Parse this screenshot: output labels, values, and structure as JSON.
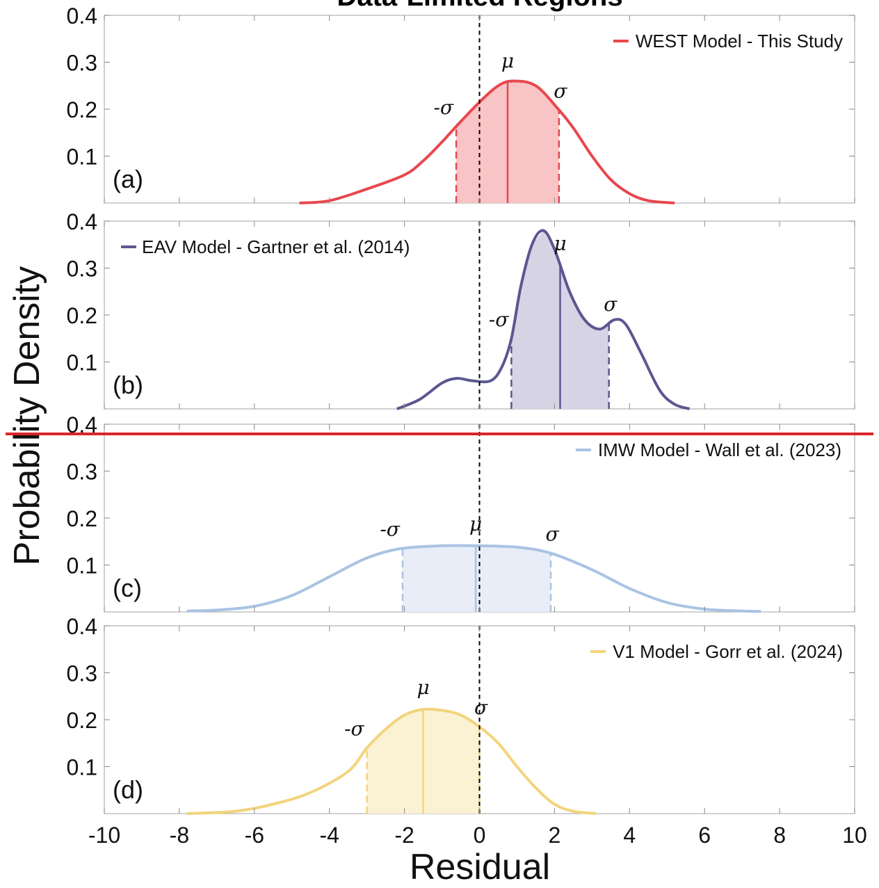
{
  "title": "Data-Limited Regions",
  "ylabel": "Probability Density",
  "xlabel": "Residual",
  "xlim": [
    -10,
    10
  ],
  "ylim": [
    0,
    0.4
  ],
  "xticks": [
    -10,
    -8,
    -6,
    -4,
    -2,
    0,
    2,
    4,
    6,
    8,
    10
  ],
  "yticks": [
    0.1,
    0.2,
    0.3,
    0.4
  ],
  "reference_line_x": 0,
  "overlay_line_color": "#d9252b",
  "chart_data": [
    {
      "type": "area",
      "panel_label": "(a)",
      "series": [
        {
          "name": "WEST Model - This Study",
          "color": "#e8474d",
          "fill": "#f9c4c6",
          "x": [
            -4.8,
            -4.0,
            -3.0,
            -2.0,
            -1.5,
            -1.0,
            -0.6,
            0.0,
            0.5,
            0.9,
            1.5,
            2.1,
            2.5,
            3.0,
            3.5,
            4.0,
            4.5,
            5.2
          ],
          "y": [
            0.0,
            0.005,
            0.03,
            0.06,
            0.09,
            0.13,
            0.165,
            0.215,
            0.25,
            0.26,
            0.25,
            0.2,
            0.16,
            0.1,
            0.05,
            0.02,
            0.005,
            0.0
          ]
        }
      ],
      "mu": 0.75,
      "sigma_minus": -0.62,
      "sigma_plus": 2.12,
      "legend_position": "top-right"
    },
    {
      "type": "area",
      "panel_label": "(b)",
      "series": [
        {
          "name": "EAV Model - Gartner et al. (2014)",
          "color": "#5b578f",
          "fill": "#d6d3e5",
          "x": [
            -2.2,
            -1.6,
            -1.0,
            -0.6,
            -0.2,
            0.3,
            0.6,
            0.85,
            1.1,
            1.4,
            1.7,
            2.0,
            2.4,
            2.8,
            3.2,
            3.6,
            3.9,
            4.3,
            4.8,
            5.2,
            5.6
          ],
          "y": [
            0.0,
            0.02,
            0.055,
            0.065,
            0.06,
            0.06,
            0.09,
            0.15,
            0.26,
            0.35,
            0.38,
            0.34,
            0.25,
            0.19,
            0.17,
            0.19,
            0.18,
            0.12,
            0.04,
            0.01,
            0.0
          ]
        }
      ],
      "mu": 2.15,
      "sigma_minus": 0.85,
      "sigma_plus": 3.45,
      "legend_position": "top-left"
    },
    {
      "type": "area",
      "panel_label": "(c)",
      "series": [
        {
          "name": "IMW Model - Wall et al. (2023)",
          "color": "#a9c3e3",
          "fill": "#e8edf8",
          "x": [
            -7.8,
            -7.0,
            -6.0,
            -5.0,
            -4.0,
            -3.0,
            -2.1,
            -1.0,
            -0.1,
            1.0,
            1.9,
            3.0,
            4.0,
            5.0,
            6.0,
            7.0,
            7.5
          ],
          "y": [
            0.002,
            0.004,
            0.012,
            0.035,
            0.075,
            0.115,
            0.135,
            0.141,
            0.141,
            0.138,
            0.125,
            0.09,
            0.05,
            0.02,
            0.006,
            0.002,
            0.001
          ]
        }
      ],
      "mu": -0.1,
      "sigma_minus": -2.05,
      "sigma_plus": 1.9,
      "legend_position": "top-right"
    },
    {
      "type": "area",
      "panel_label": "(d)",
      "series": [
        {
          "name": "V1 Model - Gorr et al. (2024)",
          "color": "#f2d47c",
          "fill": "#faf2d2",
          "x": [
            -7.8,
            -6.5,
            -5.5,
            -4.5,
            -3.5,
            -3.0,
            -2.5,
            -2.0,
            -1.5,
            -1.0,
            -0.5,
            0.0,
            0.5,
            1.0,
            1.5,
            2.0,
            2.5,
            3.1
          ],
          "y": [
            0.0,
            0.005,
            0.02,
            0.045,
            0.09,
            0.14,
            0.18,
            0.21,
            0.222,
            0.22,
            0.21,
            0.185,
            0.15,
            0.1,
            0.055,
            0.02,
            0.005,
            0.0
          ]
        }
      ],
      "mu": -1.5,
      "sigma_minus": -3.0,
      "sigma_plus": 0.0,
      "legend_position": "top-right"
    }
  ]
}
